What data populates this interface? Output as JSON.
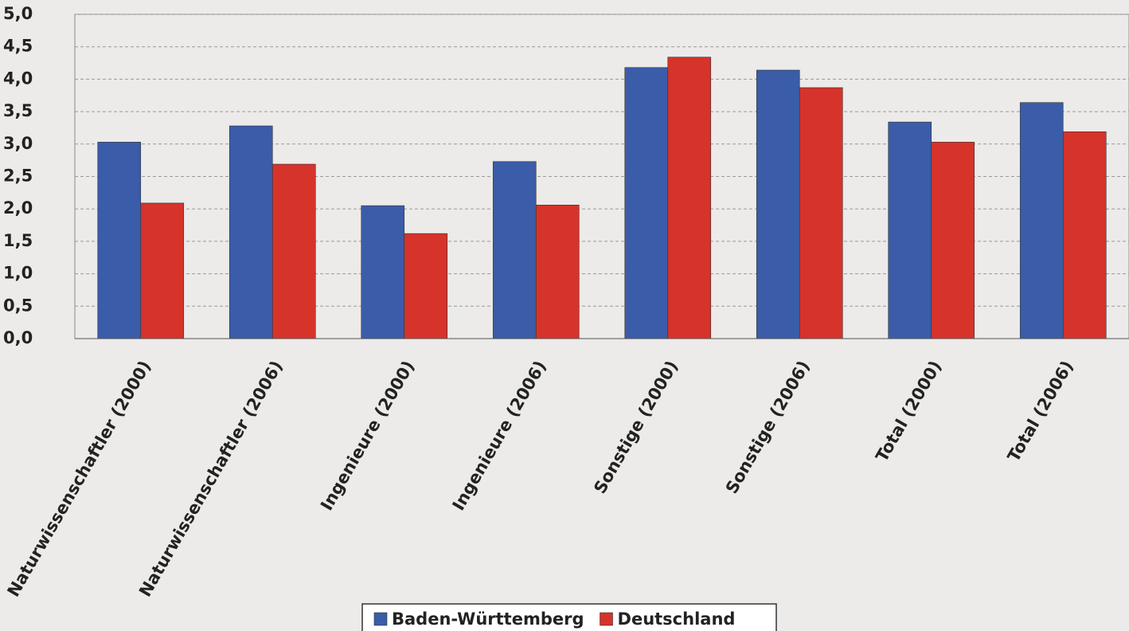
{
  "chart_data": {
    "type": "bar",
    "categories": [
      "Naturwissenschaftler (2000)",
      "Naturwissenschaftler (2006)",
      "Ingenieure (2000)",
      "Ingenieure (2006)",
      "Sonstige (2000)",
      "Sonstige (2006)",
      "Total (2000)",
      "Total (2006)"
    ],
    "series": [
      {
        "name": "Baden-Württemberg",
        "color": "#3b5ca8",
        "values": [
          3.03,
          3.28,
          2.05,
          2.73,
          4.18,
          4.14,
          3.34,
          3.64
        ]
      },
      {
        "name": "Deutschland",
        "color": "#d6332b",
        "values": [
          2.09,
          2.69,
          1.62,
          2.06,
          4.34,
          3.87,
          3.03,
          3.19
        ]
      }
    ],
    "ylim": [
      0,
      5
    ],
    "yticks": [
      {
        "value": 0,
        "label": "0,0"
      },
      {
        "value": 0.5,
        "label": "0,5"
      },
      {
        "value": 1,
        "label": "1,0"
      },
      {
        "value": 1.5,
        "label": "1,5"
      },
      {
        "value": 2,
        "label": "2,0"
      },
      {
        "value": 2.5,
        "label": "2,5"
      },
      {
        "value": 3,
        "label": "3,0"
      },
      {
        "value": 3.5,
        "label": "3,5"
      },
      {
        "value": 4,
        "label": "4,0"
      },
      {
        "value": 4.5,
        "label": "4,5"
      },
      {
        "value": 5,
        "label": "5,0"
      }
    ],
    "grid": true,
    "legend": "bottom"
  }
}
